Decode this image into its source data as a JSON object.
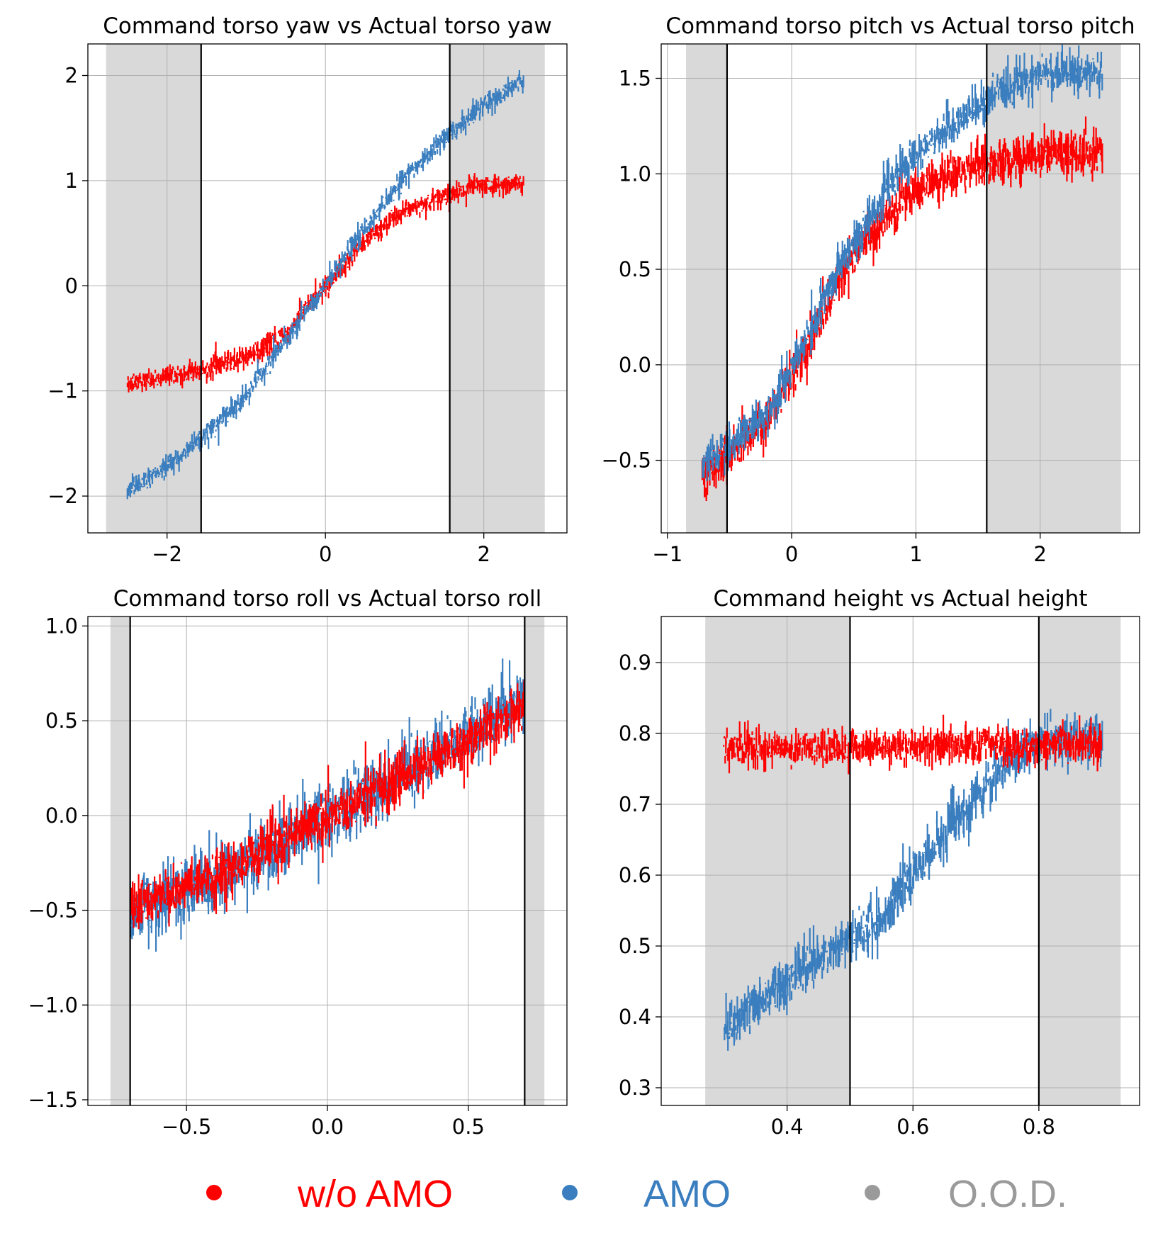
{
  "colors": {
    "without_amo": "#ff0000",
    "amo": "#3a7ebf",
    "ood": "#9a9a9a",
    "ood_shade": "#d9d9d9",
    "grid": "#b0b0b0"
  },
  "legend": [
    {
      "label": "w/o AMO",
      "color": "#ff0000"
    },
    {
      "label": "AMO",
      "color": "#3a7ebf"
    },
    {
      "label": "O.O.D.",
      "color": "#9a9a9a"
    }
  ],
  "chart_data": [
    {
      "type": "scatter",
      "title": "Command torso yaw vs Actual torso yaw",
      "xlim": [
        -3.0,
        3.05
      ],
      "ylim": [
        -2.35,
        2.3
      ],
      "xticks": [
        -2,
        0,
        2
      ],
      "xtick_labels": [
        "−2",
        "0",
        "2"
      ],
      "yticks": [
        -2,
        -1,
        0,
        1,
        2
      ],
      "ytick_labels": [
        "−2",
        "−1",
        "0",
        "1",
        "2"
      ],
      "ood_regions": [
        [
          -2.77,
          -1.57
        ],
        [
          1.57,
          2.77
        ]
      ],
      "thresholds": [
        -1.57,
        1.57
      ],
      "x_range": [
        -2.5,
        2.5
      ],
      "series": [
        {
          "name": "w/o AMO",
          "points": [
            [
              -2.5,
              -0.92
            ],
            [
              -2.0,
              -0.87
            ],
            [
              -1.57,
              -0.8
            ],
            [
              -1.0,
              -0.68
            ],
            [
              -0.5,
              -0.45
            ],
            [
              0,
              0
            ],
            [
              0.5,
              0.42
            ],
            [
              1.0,
              0.72
            ],
            [
              1.57,
              0.88
            ],
            [
              2.0,
              0.95
            ],
            [
              2.5,
              0.98
            ]
          ],
          "noise": 0.06
        },
        {
          "name": "AMO",
          "points": [
            [
              -2.5,
              -1.95
            ],
            [
              -2.0,
              -1.72
            ],
            [
              -1.57,
              -1.45
            ],
            [
              -1.0,
              -1.05
            ],
            [
              -0.5,
              -0.5
            ],
            [
              0,
              0
            ],
            [
              0.5,
              0.55
            ],
            [
              1.0,
              1.02
            ],
            [
              1.57,
              1.45
            ],
            [
              2.0,
              1.72
            ],
            [
              2.5,
              1.97
            ]
          ],
          "noise": 0.06
        }
      ]
    },
    {
      "type": "scatter",
      "title": "Command torso pitch vs Actual torso pitch",
      "xlim": [
        -1.05,
        2.8
      ],
      "ylim": [
        -0.88,
        1.68
      ],
      "xticks": [
        -1,
        0,
        1,
        2
      ],
      "xtick_labels": [
        "−1",
        "0",
        "1",
        "2"
      ],
      "yticks": [
        -0.5,
        0.0,
        0.5,
        1.0,
        1.5
      ],
      "ytick_labels": [
        "−0.5",
        "0.0",
        "0.5",
        "1.0",
        "1.5"
      ],
      "ood_regions": [
        [
          -0.85,
          -0.52
        ],
        [
          1.57,
          2.65
        ]
      ],
      "thresholds": [
        -0.52,
        1.57
      ],
      "x_range": [
        -0.72,
        2.5
      ],
      "series": [
        {
          "name": "w/o AMO",
          "points": [
            [
              -0.72,
              -0.58
            ],
            [
              -0.5,
              -0.45
            ],
            [
              -0.2,
              -0.28
            ],
            [
              0,
              -0.05
            ],
            [
              0.2,
              0.2
            ],
            [
              0.4,
              0.48
            ],
            [
              0.6,
              0.65
            ],
            [
              0.8,
              0.8
            ],
            [
              1.0,
              0.92
            ],
            [
              1.3,
              1.0
            ],
            [
              1.57,
              1.05
            ],
            [
              2.0,
              1.1
            ],
            [
              2.5,
              1.12
            ]
          ],
          "noise": 0.07
        },
        {
          "name": "AMO",
          "points": [
            [
              -0.72,
              -0.52
            ],
            [
              -0.5,
              -0.42
            ],
            [
              -0.2,
              -0.25
            ],
            [
              0,
              -0.02
            ],
            [
              0.2,
              0.25
            ],
            [
              0.4,
              0.55
            ],
            [
              0.6,
              0.75
            ],
            [
              0.8,
              0.95
            ],
            [
              1.0,
              1.1
            ],
            [
              1.3,
              1.25
            ],
            [
              1.57,
              1.38
            ],
            [
              1.8,
              1.48
            ],
            [
              2.0,
              1.52
            ],
            [
              2.5,
              1.53
            ]
          ],
          "noise": 0.06
        }
      ]
    },
    {
      "type": "scatter",
      "title": "Command torso roll vs Actual torso roll",
      "xlim": [
        -0.85,
        0.85
      ],
      "ylim": [
        -1.53,
        1.05
      ],
      "xticks": [
        -0.5,
        0.0,
        0.5
      ],
      "xtick_labels": [
        "−0.5",
        "0.0",
        "0.5"
      ],
      "yticks": [
        -1.5,
        -1.0,
        -0.5,
        0.0,
        0.5,
        1.0
      ],
      "ytick_labels": [
        "−1.5",
        "−1.0",
        "−0.5",
        "0.0",
        "0.5",
        "1.0"
      ],
      "ood_regions": [
        [
          -0.77,
          -0.7
        ],
        [
          0.7,
          0.77
        ]
      ],
      "thresholds": [
        -0.7,
        0.7
      ],
      "x_range": [
        -0.7,
        0.7
      ],
      "series": [
        {
          "name": "AMO",
          "points": [
            [
              -0.7,
              -0.52
            ],
            [
              -0.35,
              -0.3
            ],
            [
              0,
              0
            ],
            [
              0.35,
              0.28
            ],
            [
              0.7,
              0.62
            ]
          ],
          "noise": 0.1
        },
        {
          "name": "w/o AMO",
          "points": [
            [
              -0.7,
              -0.5
            ],
            [
              -0.35,
              -0.28
            ],
            [
              0,
              0
            ],
            [
              0.35,
              0.27
            ],
            [
              0.7,
              0.58
            ]
          ],
          "noise": 0.08
        }
      ]
    },
    {
      "type": "scatter",
      "title": "Command height vs Actual height",
      "xlim": [
        0.2,
        0.96
      ],
      "ylim": [
        0.275,
        0.965
      ],
      "xticks": [
        0.4,
        0.6,
        0.8
      ],
      "xtick_labels": [
        "0.4",
        "0.6",
        "0.8"
      ],
      "yticks": [
        0.3,
        0.4,
        0.5,
        0.6,
        0.7,
        0.8,
        0.9
      ],
      "ytick_labels": [
        "0.3",
        "0.4",
        "0.5",
        "0.6",
        "0.7",
        "0.8",
        "0.9"
      ],
      "ood_regions": [
        [
          0.27,
          0.5
        ],
        [
          0.8,
          0.93
        ]
      ],
      "thresholds": [
        0.5,
        0.8
      ],
      "x_range": [
        0.3,
        0.9
      ],
      "series": [
        {
          "name": "AMO",
          "points": [
            [
              0.3,
              0.38
            ],
            [
              0.35,
              0.42
            ],
            [
              0.4,
              0.45
            ],
            [
              0.45,
              0.48
            ],
            [
              0.5,
              0.51
            ],
            [
              0.55,
              0.54
            ],
            [
              0.6,
              0.6
            ],
            [
              0.65,
              0.66
            ],
            [
              0.7,
              0.71
            ],
            [
              0.75,
              0.76
            ],
            [
              0.8,
              0.79
            ],
            [
              0.9,
              0.79
            ]
          ],
          "noise": 0.02
        },
        {
          "name": "w/o AMO",
          "points": [
            [
              0.3,
              0.78
            ],
            [
              0.6,
              0.78
            ],
            [
              0.9,
              0.785
            ]
          ],
          "noise": 0.015
        }
      ]
    }
  ]
}
